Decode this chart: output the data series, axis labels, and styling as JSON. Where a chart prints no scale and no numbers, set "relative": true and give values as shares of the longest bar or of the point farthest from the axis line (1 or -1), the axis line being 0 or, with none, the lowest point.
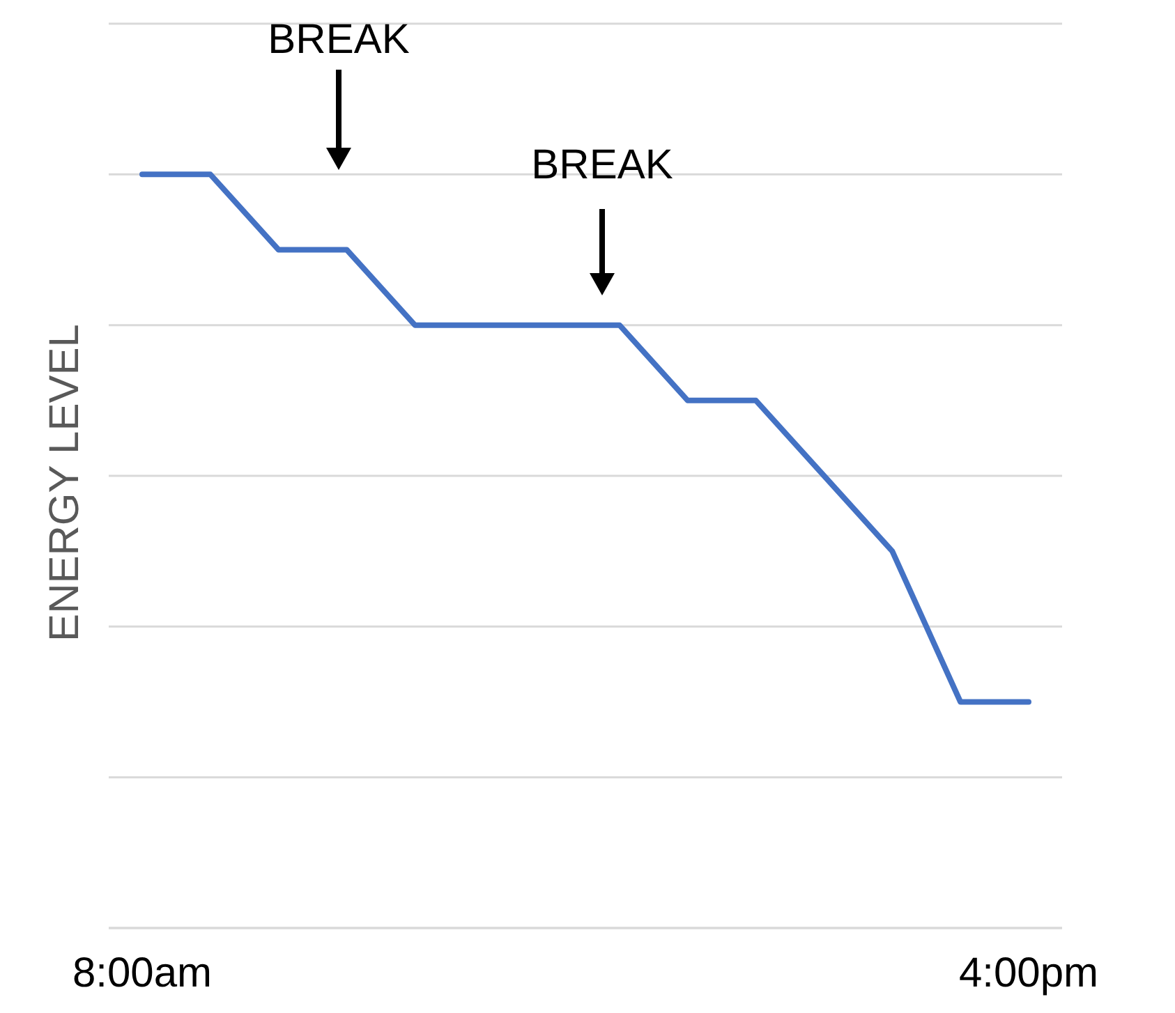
{
  "chart_data": {
    "type": "line",
    "relative": true,
    "ylabel": "ENERGY LEVEL",
    "categories": [
      "8:00am",
      null,
      null,
      null,
      null,
      null,
      null,
      null,
      null,
      null,
      null,
      null,
      null,
      "4:00pm"
    ],
    "series": [
      {
        "color": "#4472c4",
        "values": [
          1,
          1,
          0.9,
          0.9,
          0.8,
          0.8,
          0.8,
          0.8,
          0.7,
          0.7,
          0.6,
          0.5,
          0.3,
          0.3
        ]
      }
    ],
    "annotations": [
      "BREAK",
      "BREAK"
    ],
    "grid": "y",
    "marker": "none",
    "line_style": "solid"
  }
}
